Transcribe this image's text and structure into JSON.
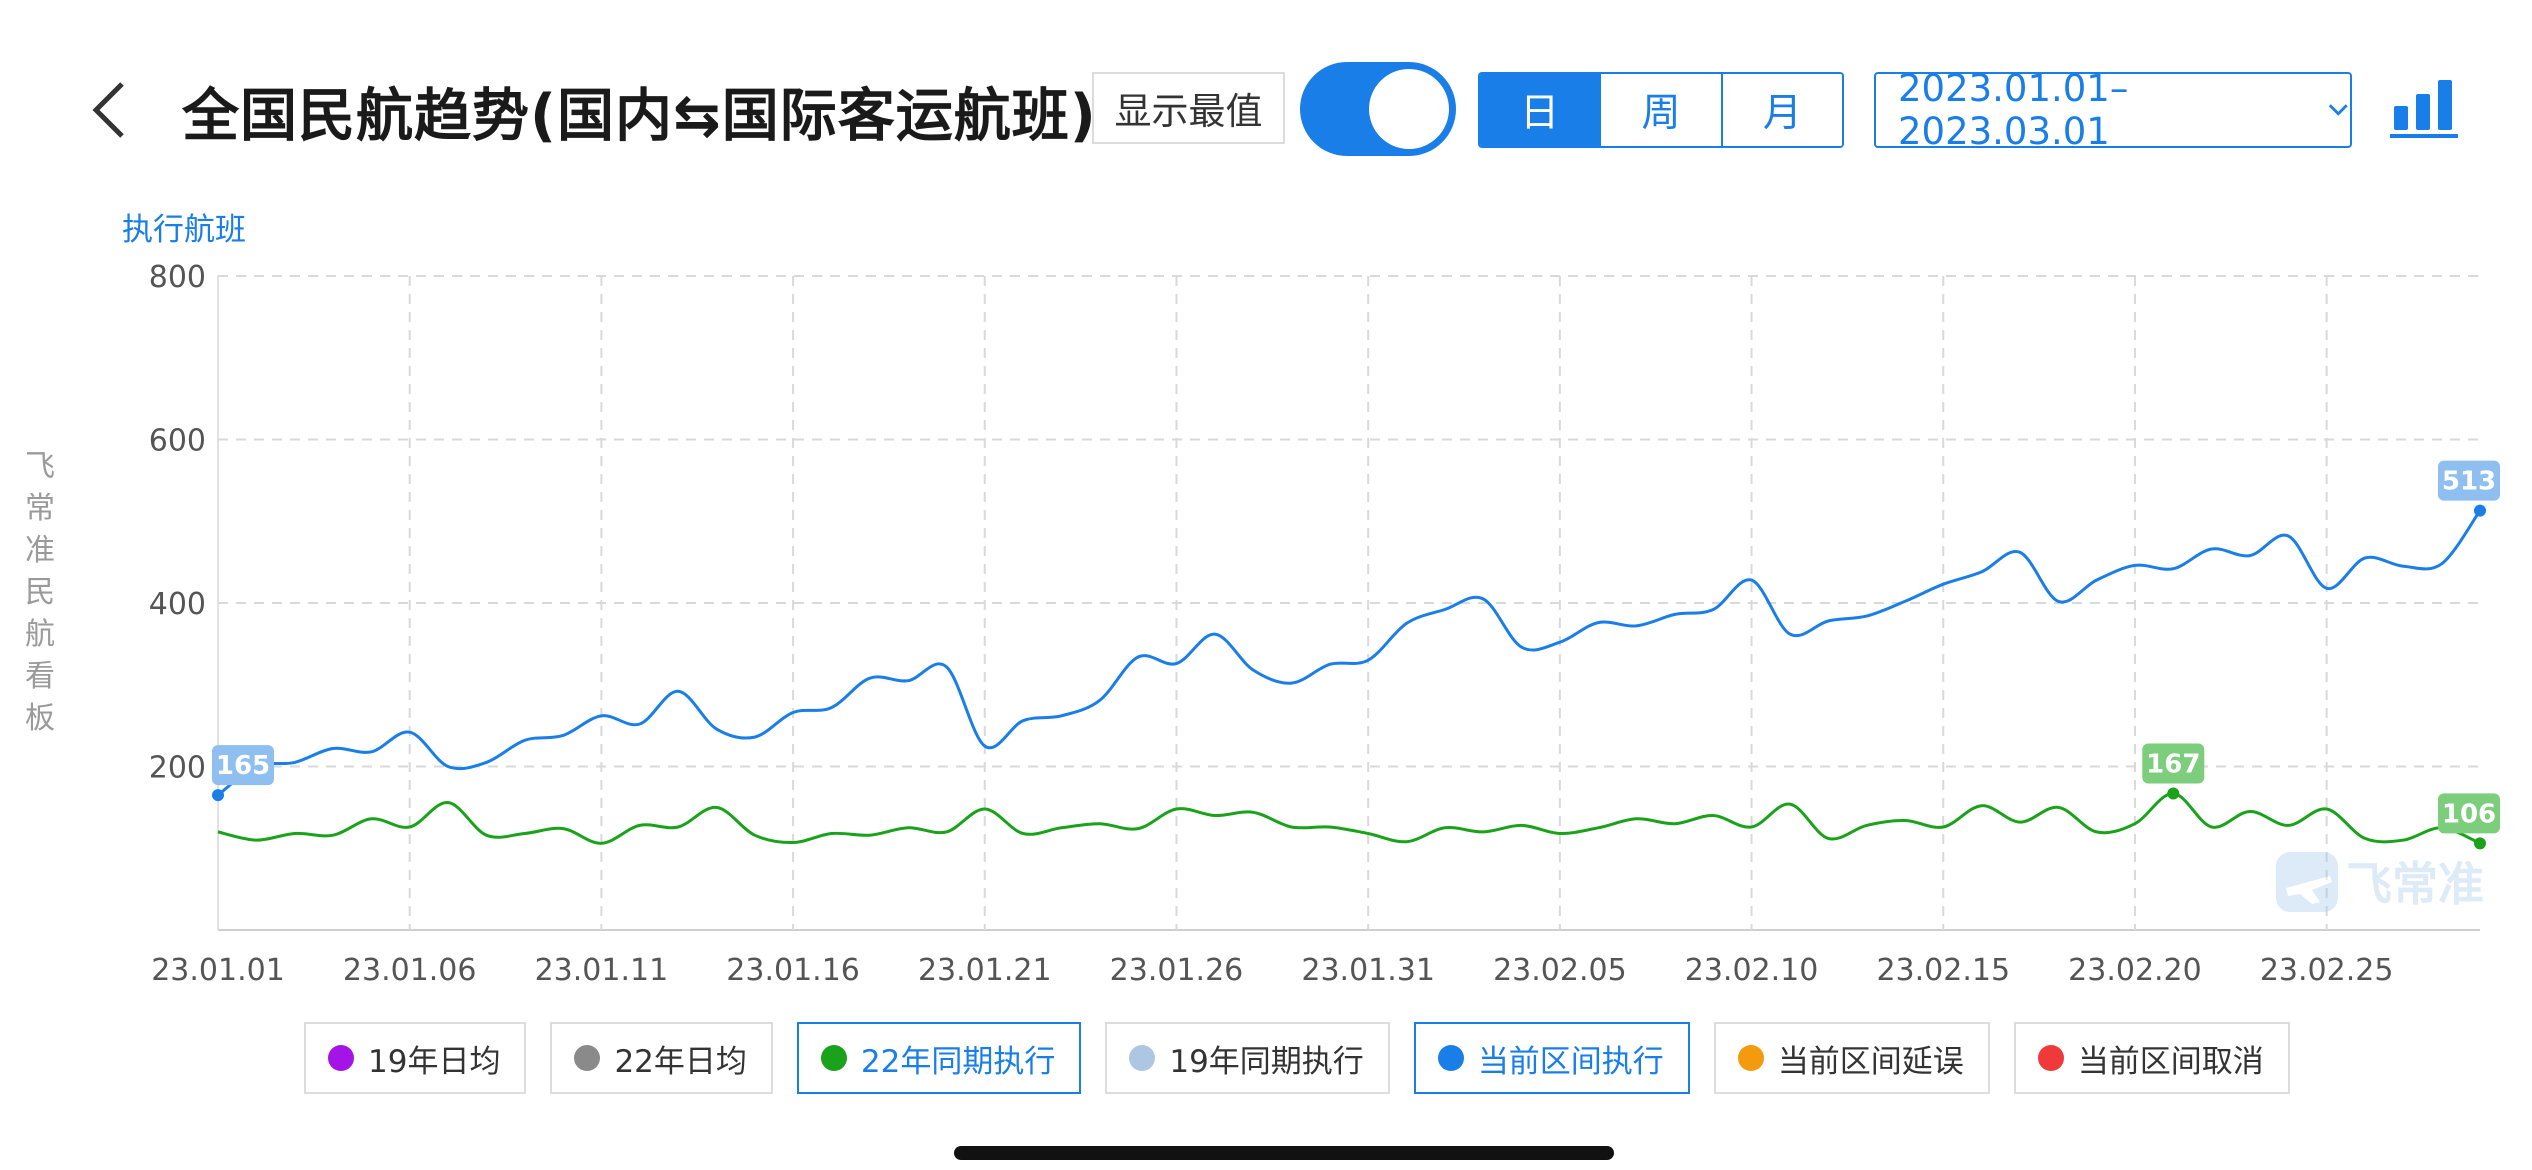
{
  "header": {
    "title": "全国民航趋势(国内⇆国际客运航班)",
    "extreme_label": "显示最值",
    "toggle_on": true,
    "periods": [
      {
        "label": "日",
        "active": true
      },
      {
        "label": "周",
        "active": false
      },
      {
        "label": "月",
        "active": false
      }
    ],
    "date_range": "2023.01.01–2023.03.01"
  },
  "watermark": {
    "vertical_text": "飞常准民航看板",
    "logo_text": "飞常准"
  },
  "colors": {
    "accent": "#1a7ee8",
    "current_series": "#1a7ee8",
    "same_period_22": "#1aa21a",
    "grid": "#d9d9d9"
  },
  "chart_data": {
    "type": "line",
    "ylabel": "执行航班",
    "ylim": [
      0,
      800
    ],
    "yticks": [
      200,
      400,
      600,
      800
    ],
    "grid": true,
    "x_tick_labels": [
      "23.01.01",
      "23.01.06",
      "23.01.11",
      "23.01.16",
      "23.01.21",
      "23.01.26",
      "23.01.31",
      "23.02.05",
      "23.02.10",
      "23.02.15",
      "23.02.20",
      "23.02.25"
    ],
    "x_tick_every": 5,
    "series": [
      {
        "name": "当前区间执行",
        "color": "#1a7ee8",
        "values": [
          165,
          200,
          205,
          222,
          218,
          242,
          200,
          205,
          232,
          238,
          262,
          252,
          292,
          246,
          236,
          266,
          272,
          308,
          305,
          322,
          225,
          256,
          262,
          281,
          334,
          326,
          362,
          318,
          302,
          325,
          330,
          375,
          392,
          405,
          346,
          352,
          376,
          372,
          386,
          392,
          428,
          362,
          378,
          384,
          402,
          423,
          438,
          462,
          402,
          428,
          446,
          442,
          466,
          458,
          482,
          418,
          455,
          445,
          448,
          513
        ]
      },
      {
        "name": "22年同期执行",
        "color": "#1aa21a",
        "values": [
          120,
          110,
          118,
          116,
          136,
          126,
          156,
          116,
          118,
          124,
          106,
          128,
          126,
          150,
          116,
          107,
          118,
          116,
          125,
          120,
          148,
          118,
          125,
          130,
          124,
          148,
          140,
          144,
          126,
          126,
          118,
          108,
          125,
          120,
          128,
          118,
          125,
          136,
          130,
          140,
          126,
          154,
          112,
          128,
          134,
          126,
          152,
          132,
          150,
          120,
          130,
          167,
          126,
          145,
          128,
          148,
          112,
          110,
          125,
          106
        ]
      }
    ],
    "value_labels": [
      {
        "series": 0,
        "index": 0,
        "text": "165"
      },
      {
        "series": 0,
        "index": 59,
        "text": "513"
      },
      {
        "series": 1,
        "index": 51,
        "text": "167"
      },
      {
        "series": 1,
        "index": 59,
        "text": "106"
      }
    ]
  },
  "legend": [
    {
      "label": "19年日均",
      "color": "#a514e6",
      "active": false
    },
    {
      "label": "22年日均",
      "color": "#8a8a8a",
      "active": false
    },
    {
      "label": "22年同期执行",
      "color": "#1aa21a",
      "active": true
    },
    {
      "label": "19年同期执行",
      "color": "#adc6e2",
      "active": false
    },
    {
      "label": "当前区间执行",
      "color": "#1a7ee8",
      "active": true
    },
    {
      "label": "当前区间延误",
      "color": "#f59a0f",
      "active": false
    },
    {
      "label": "当前区间取消",
      "color": "#f03a3a",
      "active": false
    }
  ]
}
